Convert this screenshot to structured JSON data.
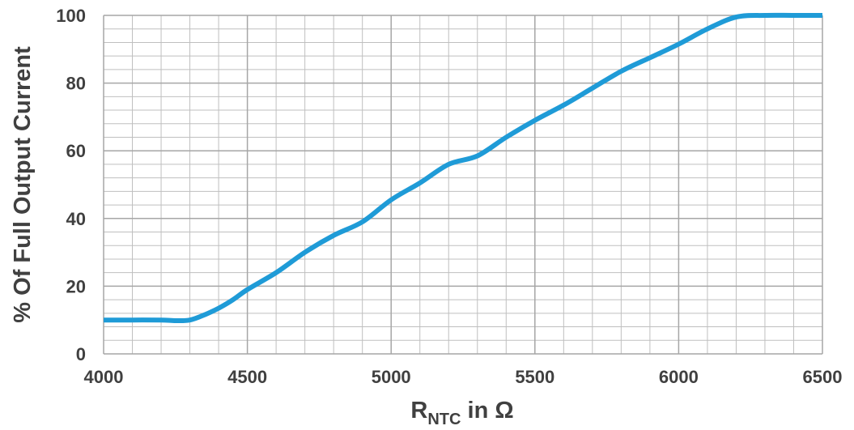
{
  "chart_data": {
    "type": "line",
    "title": "",
    "xlabel": {
      "main": "R",
      "subscript": "NTC",
      "suffix": " in Ω"
    },
    "ylabel": "% Of Full Output Current",
    "xlim": [
      4000,
      6500
    ],
    "ylim": [
      0,
      100
    ],
    "x_ticks": [
      4000,
      4500,
      5000,
      5500,
      6000,
      6500
    ],
    "y_ticks": [
      0,
      20,
      40,
      60,
      80,
      100
    ],
    "x_minor_step": 100,
    "y_minor_step": 4,
    "grid": true,
    "colors": {
      "line": "#1f9bd7",
      "grid_major": "#a6a6a6",
      "grid_minor": "#bfbfbf",
      "text": "#404040"
    },
    "series": [
      {
        "x": [
          4000,
          4100,
          4200,
          4250,
          4300,
          4350,
          4400,
          4450,
          4500,
          4600,
          4700,
          4800,
          4900,
          5000,
          5100,
          5200,
          5300,
          5400,
          5500,
          5600,
          5700,
          5800,
          5900,
          6000,
          6100,
          6200,
          6300,
          6400,
          6500
        ],
        "values": [
          10,
          10,
          10,
          9.8,
          10,
          11.5,
          13.5,
          16,
          19,
          24,
          30,
          35,
          39,
          45.5,
          50.5,
          56,
          58.5,
          64,
          69,
          73.5,
          78.5,
          83.5,
          87.5,
          91.5,
          96,
          99.5,
          100,
          100,
          100
        ]
      }
    ]
  }
}
